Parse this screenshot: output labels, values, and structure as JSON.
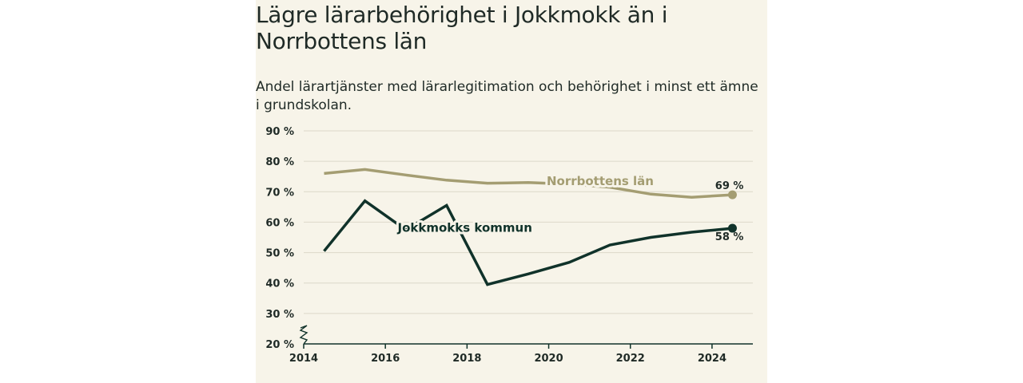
{
  "chart_data": {
    "type": "line",
    "title": "Lägre lärarbehörighet i Jokkmokk än i Norrbottens län",
    "subtitle": "Andel lärartjänster med lärarlegitimation och behörighet i minst ett ämne i grundskolan.",
    "x_ticks": [
      2014,
      2016,
      2018,
      2020,
      2022,
      2024
    ],
    "x_tick_labels": [
      "2014",
      "2016",
      "2018",
      "2020",
      "2022",
      "2024"
    ],
    "xlim": [
      2014,
      2025
    ],
    "y_ticks": [
      20,
      30,
      40,
      50,
      60,
      70,
      80,
      90
    ],
    "y_tick_labels": [
      "20 %",
      "30 %",
      "40 %",
      "50 %",
      "60 %",
      "70 %",
      "80 %",
      "90 %"
    ],
    "ylim": [
      20,
      90
    ],
    "grid": true,
    "axis_break": true,
    "series": [
      {
        "name": "Norrbottens län",
        "color": "#a49d72",
        "x": [
          2014.5,
          2015.5,
          2016.5,
          2017.5,
          2018.5,
          2019.5,
          2020.5,
          2021.5,
          2022.5,
          2023.5,
          2024.5
        ],
        "y": [
          76,
          77.3,
          75.5,
          73.8,
          72.8,
          73,
          72.5,
          71.5,
          69.2,
          68.2,
          69
        ],
        "end_label": "69 %"
      },
      {
        "name": "Jokkmokks kommun",
        "color": "#10322a",
        "x": [
          2014.5,
          2015.5,
          2016.5,
          2017.5,
          2018.5,
          2019.5,
          2020.5,
          2021.5,
          2022.5,
          2023.5,
          2024.5
        ],
        "y": [
          50.5,
          67,
          57.5,
          65.5,
          39.5,
          43,
          46.8,
          52.5,
          55,
          56.7,
          58
        ],
        "end_label": "58 %"
      }
    ]
  }
}
